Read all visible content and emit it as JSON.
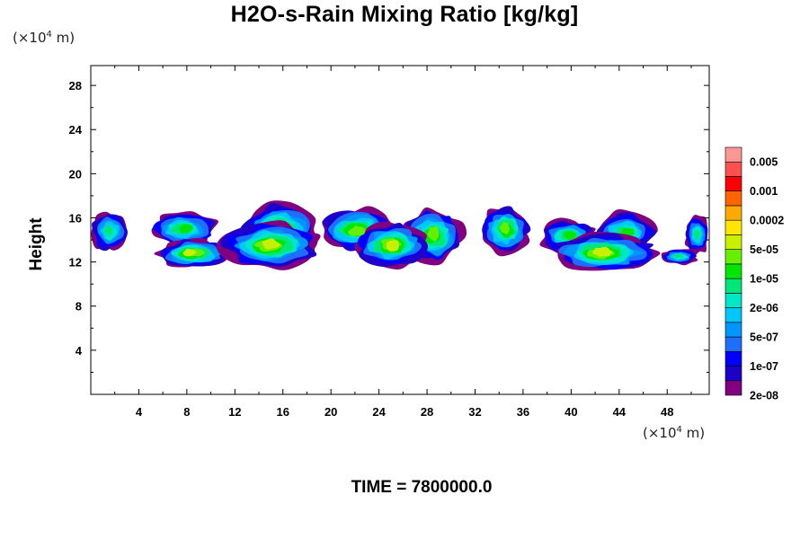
{
  "chart_data": {
    "type": "heatmap",
    "title": "H2O-s-Rain Mixing Ratio [kg/kg]",
    "ylabel": "Height",
    "xlabel": "",
    "x_unit": "(×10⁴ m)",
    "y_unit": "(×10⁴ m)",
    "xlim": [
      0,
      51.5
    ],
    "ylim": [
      0,
      29.8
    ],
    "x_ticks": [
      4,
      8,
      12,
      16,
      20,
      24,
      28,
      32,
      36,
      40,
      44,
      48
    ],
    "y_ticks": [
      4,
      8,
      12,
      16,
      20,
      24,
      28
    ],
    "footer": "TIME = 7800000.0",
    "colorbar": {
      "labels": [
        "0.005",
        "0.001",
        "0.0002",
        "5e-05",
        "1e-05",
        "2e-06",
        "5e-07",
        "1e-07",
        "2e-08"
      ],
      "colors": [
        "#800080",
        "#1e00c8",
        "#0000ff",
        "#1e6eff",
        "#0096ff",
        "#00c8ff",
        "#00e6c8",
        "#00e678",
        "#00e600",
        "#64f000",
        "#c8f000",
        "#ffe600",
        "#ffaa00",
        "#ff6400",
        "#ff0000",
        "#ff5050",
        "#ff9696"
      ]
    },
    "regions": [
      {
        "band": "upper",
        "x": [
          0,
          3.2
        ],
        "y": [
          13,
          16.5
        ],
        "level": 7
      },
      {
        "band": "upper",
        "x": [
          5,
          10.5
        ],
        "y": [
          13.5,
          16.5
        ],
        "level": 8
      },
      {
        "band": "upper",
        "x": [
          12.5,
          19
        ],
        "y": [
          12.5,
          17.3
        ],
        "level": 9
      },
      {
        "band": "upper",
        "x": [
          19,
          25.5
        ],
        "y": [
          13,
          16.8
        ],
        "level": 9
      },
      {
        "band": "upper",
        "x": [
          26,
          31
        ],
        "y": [
          12,
          16.8
        ],
        "level": 9
      },
      {
        "band": "upper",
        "x": [
          32.5,
          36.5
        ],
        "y": [
          12.8,
          17
        ],
        "level": 9
      },
      {
        "band": "upper",
        "x": [
          37.5,
          42
        ],
        "y": [
          12.8,
          15.8
        ],
        "level": 8
      },
      {
        "band": "upper",
        "x": [
          42,
          47
        ],
        "y": [
          13,
          16.5
        ],
        "level": 8
      },
      {
        "band": "upper",
        "x": [
          49.5,
          51.5
        ],
        "y": [
          12.8,
          16.2
        ],
        "level": 7
      },
      {
        "band": "lower",
        "x": [
          5.5,
          11.5
        ],
        "y": [
          11.5,
          14
        ],
        "level": 10
      },
      {
        "band": "lower",
        "x": [
          11,
          19
        ],
        "y": [
          11.5,
          15.5
        ],
        "level": 10
      },
      {
        "band": "lower",
        "x": [
          22,
          28
        ],
        "y": [
          11.5,
          15.5
        ],
        "level": 10
      },
      {
        "band": "lower",
        "x": [
          38.5,
          47
        ],
        "y": [
          11.2,
          14.5
        ],
        "level": 10
      },
      {
        "band": "lower",
        "x": [
          47.5,
          50.5
        ],
        "y": [
          11.8,
          13.2
        ],
        "level": 7
      }
    ]
  }
}
